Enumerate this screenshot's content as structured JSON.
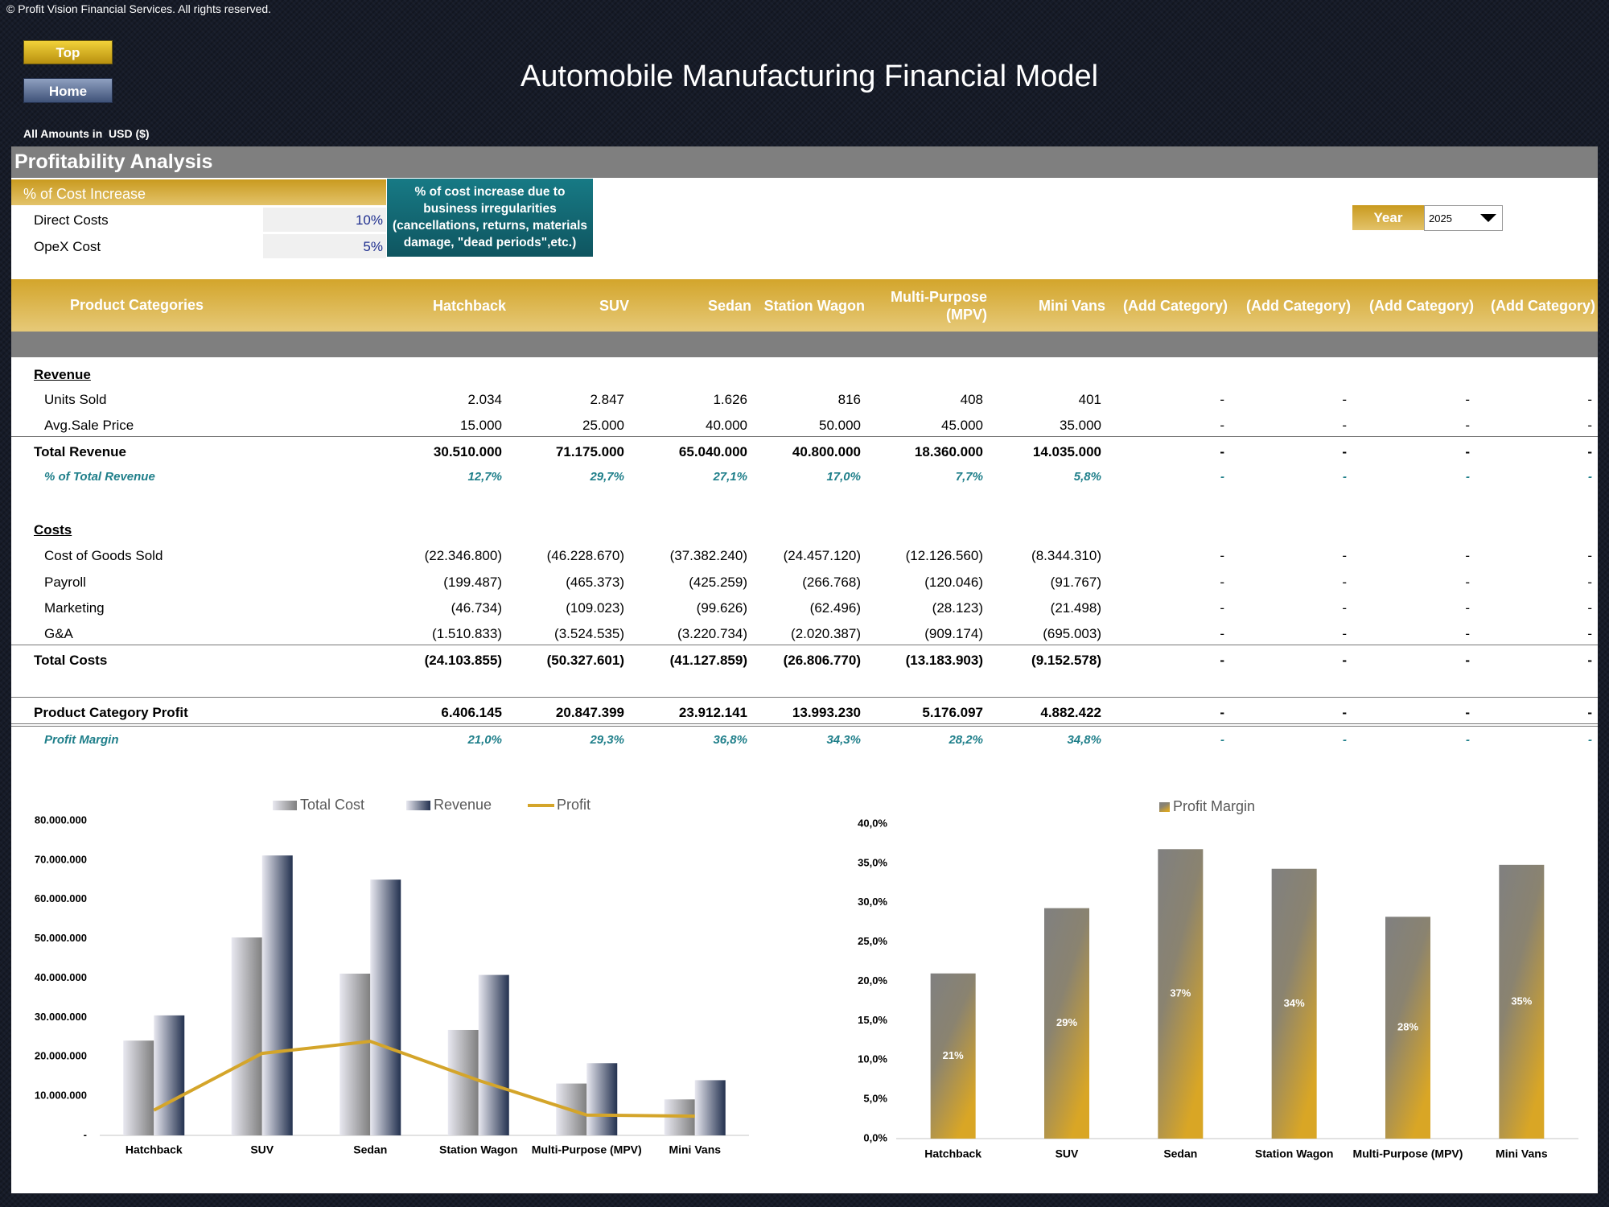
{
  "header": {
    "copyright": "© Profit Vision Financial Services. All rights reserved.",
    "buttons": [
      "Top",
      "Home"
    ],
    "title": "Automobile Manufacturing Financial Model",
    "currency_note": "All Amounts in  USD ($)"
  },
  "section_title": "Profitability Analysis",
  "cost_increase": {
    "title": "% of Cost Increase",
    "rows": [
      [
        "Direct Costs",
        "10%"
      ],
      [
        "OpeX Cost",
        "5%"
      ]
    ],
    "note": "% of cost increase due to business irregularities (cancellations, returns, materials damage, \"dead periods\",etc.)"
  },
  "year": {
    "label": "Year",
    "value": "2025"
  },
  "table": {
    "header": [
      "Product Categories",
      "Hatchback",
      "SUV",
      "Sedan",
      "Station Wagon",
      "Multi-Purpose (MPV)",
      "Mini Vans",
      "(Add Category)",
      "(Add Category)",
      "(Add Category)",
      "(Add Category)"
    ],
    "rows": [
      {
        "label": "Revenue"
      },
      {
        "label": "Units Sold",
        "values": [
          "2.034",
          "2.847",
          "1.626",
          "816",
          "408",
          "401",
          "-",
          "-",
          "-",
          "-"
        ]
      },
      {
        "label": "Avg.Sale Price",
        "values": [
          "15.000",
          "25.000",
          "40.000",
          "50.000",
          "45.000",
          "35.000",
          "-",
          "-",
          "-",
          "-"
        ]
      },
      {
        "label": "Total Revenue",
        "values": [
          "30.510.000",
          "71.175.000",
          "65.040.000",
          "40.800.000",
          "18.360.000",
          "14.035.000",
          "-",
          "-",
          "-",
          "-"
        ]
      },
      {
        "label": "% of Total Revenue",
        "values": [
          "12,7%",
          "29,7%",
          "27,1%",
          "17,0%",
          "7,7%",
          "5,8%",
          "-",
          "-",
          "-",
          "-"
        ]
      },
      {
        "label": "Costs"
      },
      {
        "label": "Cost of Goods Sold",
        "values": [
          "(22.346.800)",
          "(46.228.670)",
          "(37.382.240)",
          "(24.457.120)",
          "(12.126.560)",
          "(8.344.310)",
          "-",
          "-",
          "-",
          "-"
        ]
      },
      {
        "label": "Payroll",
        "values": [
          "(199.487)",
          "(465.373)",
          "(425.259)",
          "(266.768)",
          "(120.046)",
          "(91.767)",
          "-",
          "-",
          "-",
          "-"
        ]
      },
      {
        "label": "Marketing",
        "values": [
          "(46.734)",
          "(109.023)",
          "(99.626)",
          "(62.496)",
          "(28.123)",
          "(21.498)",
          "-",
          "-",
          "-",
          "-"
        ]
      },
      {
        "label": "G&A",
        "values": [
          "(1.510.833)",
          "(3.524.535)",
          "(3.220.734)",
          "(2.020.387)",
          "(909.174)",
          "(695.003)",
          "-",
          "-",
          "-",
          "-"
        ]
      },
      {
        "label": "Total Costs",
        "values": [
          "(24.103.855)",
          "(50.327.601)",
          "(41.127.859)",
          "(26.806.770)",
          "(13.183.903)",
          "(9.152.578)",
          "-",
          "-",
          "-",
          "-"
        ]
      },
      {
        "label": "Product Category Profit",
        "values": [
          "6.406.145",
          "20.847.399",
          "23.912.141",
          "13.993.230",
          "5.176.097",
          "4.882.422",
          "-",
          "-",
          "-",
          "-"
        ]
      },
      {
        "label": "Profit Margin",
        "values": [
          "21,0%",
          "29,3%",
          "36,8%",
          "34,3%",
          "28,2%",
          "34,8%",
          "-",
          "-",
          "-",
          "-"
        ]
      }
    ]
  },
  "chart_data": [
    {
      "type": "bar",
      "categories": [
        "Hatchback",
        "SUV",
        "Sedan",
        "Station Wagon",
        "Multi-Purpose (MPV)",
        "Mini Vans"
      ],
      "series": [
        {
          "name": "Total Cost",
          "color": "#7f7f7f",
          "values": [
            24103855,
            50327601,
            41127859,
            26806770,
            13183903,
            9152578
          ]
        },
        {
          "name": "Revenue",
          "color": "#23314f",
          "values": [
            30510000,
            71175000,
            65040000,
            40800000,
            18360000,
            14035000
          ]
        },
        {
          "name": "Profit",
          "type": "line",
          "color": "#d4a52a",
          "values": [
            6406145,
            20847399,
            23912141,
            13993230,
            5176097,
            4882422
          ]
        }
      ],
      "ylim": [
        0,
        80000000
      ],
      "yticks": [
        {
          "value": 0,
          "label": "-"
        },
        {
          "value": 10000000,
          "label": "10.000.000"
        },
        {
          "value": 20000000,
          "label": "20.000.000"
        },
        {
          "value": 30000000,
          "label": "30.000.000"
        },
        {
          "value": 40000000,
          "label": "40.000.000"
        },
        {
          "value": 50000000,
          "label": "50.000.000"
        },
        {
          "value": 60000000,
          "label": "60.000.000"
        },
        {
          "value": 70000000,
          "label": "70.000.000"
        },
        {
          "value": 80000000,
          "label": "80.000.000"
        }
      ],
      "grid": false
    },
    {
      "type": "bar",
      "categories": [
        "Hatchback",
        "SUV",
        "Sedan",
        "Station Wagon",
        "Multi-Purpose (MPV)",
        "Mini Vans"
      ],
      "series": [
        {
          "name": "Profit Margin",
          "color": "#d9a625",
          "values": [
            21.0,
            29.3,
            36.8,
            34.3,
            28.2,
            34.8
          ],
          "value_labels": [
            "21%",
            "29%",
            "37%",
            "34%",
            "28%",
            "35%"
          ]
        }
      ],
      "ylim": [
        0,
        40
      ],
      "yticks": [
        {
          "value": 0,
          "label": "0,0%"
        },
        {
          "value": 5,
          "label": "5,0%"
        },
        {
          "value": 10,
          "label": "10,0%"
        },
        {
          "value": 15,
          "label": "15,0%"
        },
        {
          "value": 20,
          "label": "20,0%"
        },
        {
          "value": 25,
          "label": "25,0%"
        },
        {
          "value": 30,
          "label": "30,0%"
        },
        {
          "value": 35,
          "label": "35,0%"
        },
        {
          "value": 40,
          "label": "40,0%"
        }
      ],
      "grid": false
    }
  ]
}
